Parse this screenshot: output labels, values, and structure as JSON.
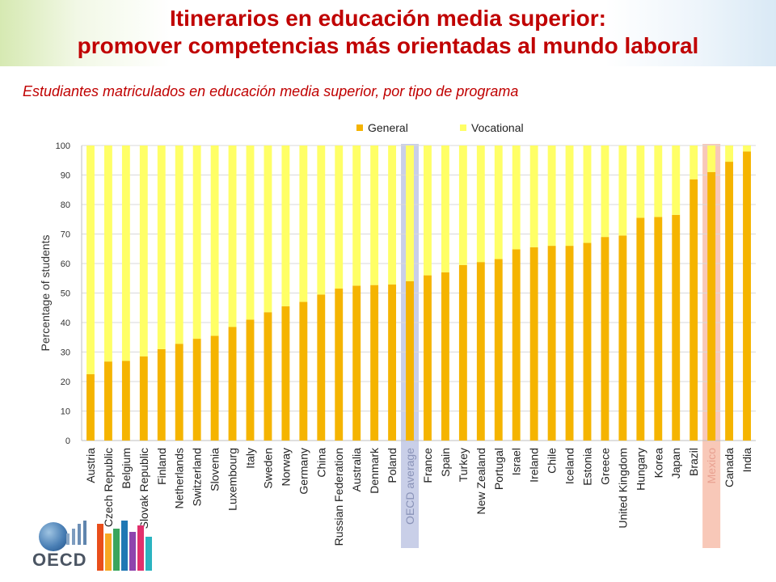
{
  "page": {
    "title_line1": "Itinerarios en educación media superior:",
    "title_line2": "promover competencias más orientadas al mundo laboral",
    "subtitle": "Estudiantes matriculados en educación media superior, por tipo de programa",
    "logo_text": "OECD"
  },
  "colors": {
    "title": "#c00000",
    "general": "#f5b400",
    "vocational": "#ffff66",
    "oecd_highlight": "#c9cfe8",
    "mexico_highlight": "#f8c8b8",
    "grid": "#d9d9d9"
  },
  "chart_data": {
    "type": "bar",
    "stacked": true,
    "ylabel": "Percentage of students",
    "ylim": [
      0,
      100
    ],
    "yticks": [
      0,
      10,
      20,
      30,
      40,
      50,
      60,
      70,
      80,
      90,
      100
    ],
    "grid": true,
    "legend_position": "top",
    "highlighted": [
      "OECD average",
      "Mexico"
    ],
    "categories": [
      "Austria",
      "Czech Republic",
      "Belgium",
      "Slovak Republic",
      "Finland",
      "Netherlands",
      "Switzerland",
      "Slovenia",
      "Luxembourg",
      "Italy",
      "Sweden",
      "Norway",
      "Germany",
      "China",
      "Russian Federation",
      "Australia",
      "Denmark",
      "Poland",
      "OECD average",
      "France",
      "Spain",
      "Turkey",
      "New Zealand",
      "Portugal",
      "Israel",
      "Ireland",
      "Chile",
      "Iceland",
      "Estonia",
      "Greece",
      "United Kingdom",
      "Hungary",
      "Korea",
      "Japan",
      "Brazil",
      "Mexico",
      "Canada",
      "India"
    ],
    "series": [
      {
        "name": "General",
        "values": [
          22.5,
          26.8,
          27,
          28.5,
          31,
          32.8,
          34.5,
          35.5,
          38.5,
          41,
          43.5,
          45.5,
          47,
          49.5,
          51.5,
          52.5,
          52.7,
          52.9,
          54,
          56,
          57,
          59.5,
          60.5,
          61.5,
          64.8,
          65.5,
          66,
          66,
          67,
          69,
          69.5,
          75.5,
          75.8,
          76.5,
          88.5,
          91,
          94.5,
          98
        ]
      },
      {
        "name": "Vocational",
        "values": [
          77.5,
          73.2,
          73,
          71.5,
          69,
          67.2,
          65.5,
          64.5,
          61.5,
          59,
          56.5,
          54.5,
          53,
          50.5,
          48.5,
          47.5,
          47.3,
          47.1,
          46,
          44,
          43,
          40.5,
          39.5,
          38.5,
          35.2,
          34.5,
          34,
          34,
          33,
          31,
          30.5,
          24.5,
          24.2,
          23.5,
          11.5,
          9,
          5.5,
          2
        ]
      }
    ]
  }
}
